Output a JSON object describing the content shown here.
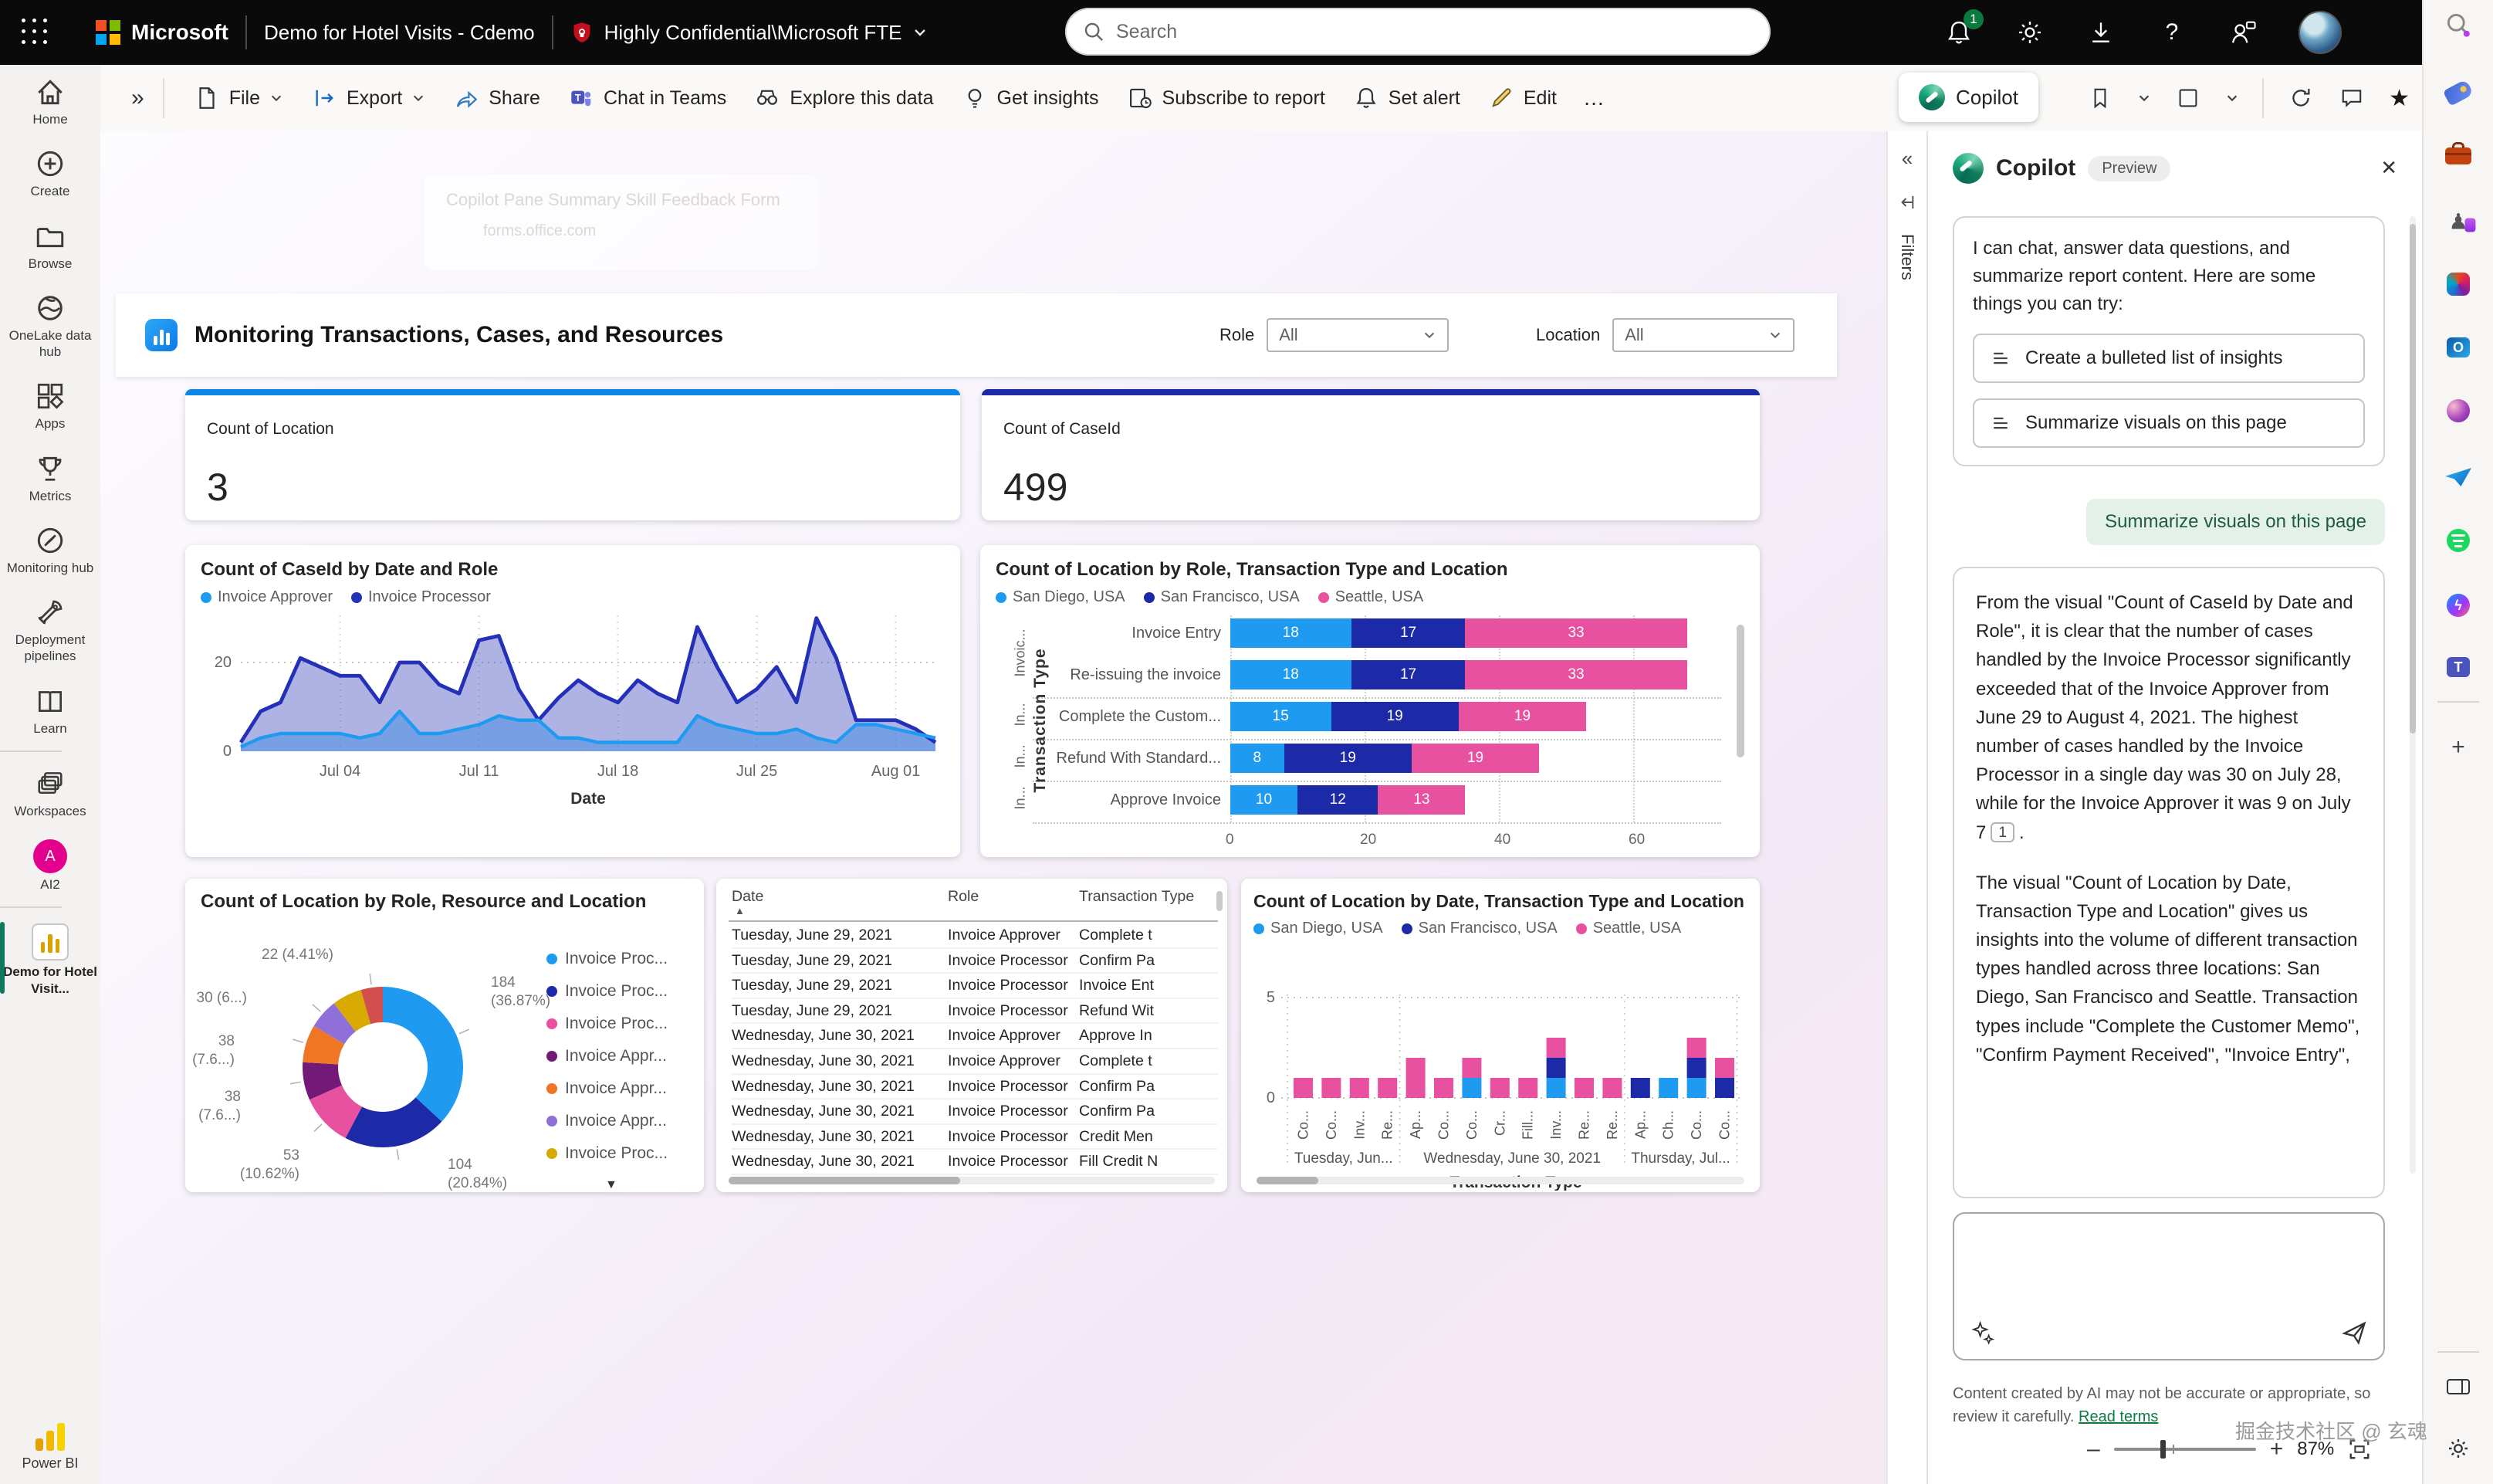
{
  "topbar": {
    "app_title": "Demo for Hotel Visits - Cdemo",
    "sensitivity": "Highly Confidential\\Microsoft FTE",
    "search_placeholder": "Search",
    "notification_count": "1"
  },
  "toolbar": {
    "collapse": "»",
    "items": [
      {
        "label": "File",
        "icon": "file-icon",
        "chevron": true
      },
      {
        "label": "Export",
        "icon": "export-icon",
        "chevron": true
      },
      {
        "label": "Share",
        "icon": "share-icon"
      },
      {
        "label": "Chat in Teams",
        "icon": "teams-icon"
      },
      {
        "label": "Explore this data",
        "icon": "explore-icon"
      },
      {
        "label": "Get insights",
        "icon": "insights-icon"
      },
      {
        "label": "Subscribe to report",
        "icon": "subscribe-icon"
      },
      {
        "label": "Set alert",
        "icon": "alert-icon"
      },
      {
        "label": "Edit",
        "icon": "edit-icon"
      }
    ],
    "more": "…",
    "copilot_label": "Copilot"
  },
  "sidebar": {
    "items": [
      {
        "label": "Home",
        "icon": "home"
      },
      {
        "label": "Create",
        "icon": "create"
      },
      {
        "label": "Browse",
        "icon": "browse"
      },
      {
        "label": "OneLake data hub",
        "icon": "onelake"
      },
      {
        "label": "Apps",
        "icon": "apps"
      },
      {
        "label": "Metrics",
        "icon": "metrics"
      },
      {
        "label": "Monitoring hub",
        "icon": "monitoring"
      },
      {
        "label": "Deployment pipelines",
        "icon": "deployment"
      },
      {
        "label": "Learn",
        "icon": "learn"
      },
      {
        "divider": true
      },
      {
        "label": "Workspaces",
        "icon": "workspaces"
      },
      {
        "label": "AI2",
        "icon": "ai2",
        "avatar": "A"
      },
      {
        "divider": true
      },
      {
        "label": "Demo for Hotel Visit...",
        "icon": "report",
        "active": true
      }
    ],
    "footer": "Power BI"
  },
  "report": {
    "title": "Monitoring Transactions, Cases, and Resources",
    "role_label": "Role",
    "role_value": "All",
    "location_label": "Location",
    "location_value": "All",
    "kpis": [
      {
        "label": "Count of Location",
        "value": "3",
        "accent": "#0d86e8"
      },
      {
        "label": "Count of CaseId",
        "value": "499",
        "accent": "#1c2aa8"
      }
    ],
    "ghost_popup": {
      "line1": "Copilot Pane Summary Skill Feedback Form",
      "line2": "forms.office.com"
    }
  },
  "filters_pane": {
    "label": "Filters",
    "collapse": "«"
  },
  "copilot": {
    "title": "Copilot",
    "badge": "Preview",
    "intro": "I can chat, answer data questions, and summarize report content. Here are some things you can try:",
    "suggestions": [
      "Create a bulleted list of insights",
      "Summarize visuals on this page"
    ],
    "user_message": "Summarize visuals on this page",
    "response_p1": "From the visual \"Count of CaseId by Date and Role\", it is clear that the number of cases handled by the Invoice Processor significantly exceeded that of the Invoice Approver from June 29 to August 4, 2021. The highest number of cases handled by the Invoice Processor in a single day was 30 on July 28, while for the Invoice Approver it was 9 on July 7",
    "citation": "1",
    "response_p2": "The visual \"Count of Location by Date, Transaction Type and Location\" gives us insights into the volume of different transaction types handled across three locations: San Diego, San Francisco and Seattle. Transaction types include \"Complete the Customer Memo\", \"Confirm Payment Received\", \"Invoice Entry\",",
    "disclaimer": "Content created by AI may not be accurate or appropriate, so review it carefully.",
    "read_terms": "Read terms"
  },
  "statusbar": {
    "zoom": "87%",
    "watermark": "掘金技术社区 @ 玄魂"
  },
  "edge_sidebar": [
    "search-icon",
    "shopping-icon",
    "toolbox-icon",
    "games-icon",
    "microsoft365-icon",
    "outlook-icon",
    "designer-icon",
    "send-icon",
    "spotify-icon",
    "messenger-icon",
    "teams-icon",
    "divider",
    "add-icon",
    "divider-bottom",
    "sidebar-panel-icon",
    "settings-icon"
  ],
  "chart_data": [
    {
      "type": "area",
      "title": "Count of CaseId by Date and Role",
      "xlabel": "Date",
      "x_ticks": [
        "Jul 04",
        "Jul 11",
        "Jul 18",
        "Jul 25",
        "Aug 01"
      ],
      "x_tick_day_index": [
        5,
        12,
        19,
        26,
        33
      ],
      "ylim": [
        0,
        32
      ],
      "y_ticks": [
        0,
        20
      ],
      "legend_position": "top",
      "series": [
        {
          "name": "Invoice Approver",
          "color": "#1e9bf0",
          "values": [
            1,
            3,
            4,
            4,
            4,
            4,
            3,
            4,
            9,
            4,
            4,
            5,
            6,
            8,
            7,
            7,
            3,
            3,
            2,
            2,
            2,
            2,
            2,
            8,
            6,
            5,
            4,
            4,
            5,
            3,
            2,
            6,
            6,
            5,
            4,
            3
          ]
        },
        {
          "name": "Invoice Processor",
          "color": "#2430b8",
          "values": [
            2,
            9,
            11,
            21,
            19,
            17,
            17,
            11,
            20,
            20,
            15,
            13,
            25,
            26,
            14,
            7,
            12,
            16,
            13,
            11,
            16,
            13,
            11,
            28,
            19,
            11,
            14,
            19,
            11,
            30,
            21,
            7,
            7,
            7,
            5,
            2
          ]
        }
      ]
    },
    {
      "type": "bar",
      "title": "Count of Location by Role, Transaction Type and Location",
      "ylabel": "Transaction Type",
      "categories": [
        "Invoice Entry",
        "Re-issuing the invoice",
        "Complete the Custom...",
        "Refund With Standard...",
        "Approve Invoice"
      ],
      "role_group_labels": [
        "Invoic...",
        "In...",
        "In...",
        "In..."
      ],
      "x_ticks": [
        0,
        20,
        40,
        60
      ],
      "series": [
        {
          "name": "San Diego, USA",
          "color": "#1e9bf0",
          "values": [
            18,
            18,
            15,
            8,
            10
          ]
        },
        {
          "name": "San Francisco, USA",
          "color": "#1c2aa8",
          "values": [
            17,
            17,
            19,
            19,
            12
          ]
        },
        {
          "name": "Seattle, USA",
          "color": "#e7519f",
          "values": [
            33,
            33,
            19,
            19,
            13
          ]
        }
      ]
    },
    {
      "type": "pie",
      "title": "Count of Location by Role, Resource and Location",
      "total": 499,
      "slices": [
        {
          "value": 184,
          "label1": "184",
          "label2": "(36.87%)",
          "color": "#1e9bf0",
          "legend": "Invoice Proc..."
        },
        {
          "value": 104,
          "label1": "104",
          "label2": "(20.84%)",
          "color": "#1c2aa8",
          "legend": "Invoice Proc..."
        },
        {
          "value": 53,
          "label1": "53",
          "label2": "(10.62%)",
          "color": "#e7519f",
          "legend": "Invoice Proc..."
        },
        {
          "value": 38,
          "label1": "38",
          "label2": "(7.6...)",
          "color": "#731a78",
          "legend": "Invoice Appr..."
        },
        {
          "value": 38,
          "label1": "38",
          "label2": "(7.6...)",
          "color": "#ee7624",
          "legend": "Invoice Appr..."
        },
        {
          "value": 30,
          "label1": "30 (6...)",
          "label2": "",
          "color": "#8f6fd8",
          "legend": "Invoice Appr..."
        },
        {
          "value": 30,
          "label1": "",
          "label2": "",
          "color": "#d8a900",
          "legend": "Invoice Proc..."
        },
        {
          "value": 22,
          "label1": "22 (4.41%)",
          "label2": "",
          "color": "#d14f4d",
          "legend": ""
        }
      ],
      "legend_more": "▼"
    },
    {
      "type": "table",
      "columns": [
        "Date",
        "Role",
        "Transaction Type"
      ],
      "rows": [
        [
          "Tuesday, June 29, 2021",
          "Invoice Approver",
          "Complete t"
        ],
        [
          "Tuesday, June 29, 2021",
          "Invoice Processor",
          "Confirm Pa"
        ],
        [
          "Tuesday, June 29, 2021",
          "Invoice Processor",
          "Invoice Ent"
        ],
        [
          "Tuesday, June 29, 2021",
          "Invoice Processor",
          "Refund Wit"
        ],
        [
          "Wednesday, June 30, 2021",
          "Invoice Approver",
          "Approve In"
        ],
        [
          "Wednesday, June 30, 2021",
          "Invoice Approver",
          "Complete t"
        ],
        [
          "Wednesday, June 30, 2021",
          "Invoice Processor",
          "Confirm Pa"
        ],
        [
          "Wednesday, June 30, 2021",
          "Invoice Processor",
          "Confirm Pa"
        ],
        [
          "Wednesday, June 30, 2021",
          "Invoice Processor",
          "Credit Men"
        ],
        [
          "Wednesday, June 30, 2021",
          "Invoice Processor",
          "Fill Credit N"
        ]
      ]
    },
    {
      "type": "bar",
      "subtype": "stacked-column",
      "title": "Count of Location by Date, Transaction Type and Location",
      "xlabel": "Transaction Type",
      "y_ticks": [
        0,
        5
      ],
      "bar_labels": [
        "Co...",
        "Co...",
        "Inv...",
        "Re...",
        "Ap...",
        "Co...",
        "Co...",
        "Cr...",
        "Fill...",
        "Inv...",
        "Re...",
        "Re...",
        "Ap...",
        "Ch...",
        "Co...",
        "Co..."
      ],
      "groups": [
        {
          "label": "Tuesday, Jun...",
          "count": 4
        },
        {
          "label": "Wednesday, June 30, 2021",
          "count": 8
        },
        {
          "label": "Thursday, Jul...",
          "count": 4
        }
      ],
      "series": [
        {
          "name": "San Diego, USA",
          "color": "#1e9bf0",
          "values": [
            0,
            0,
            0,
            0,
            0,
            0,
            1,
            0,
            0,
            1,
            0,
            0,
            0,
            1,
            1,
            0
          ]
        },
        {
          "name": "San Francisco, USA",
          "color": "#1c2aa8",
          "values": [
            0,
            0,
            0,
            0,
            0,
            0,
            0,
            0,
            0,
            1,
            0,
            0,
            1,
            0,
            1,
            1
          ]
        },
        {
          "name": "Seattle, USA",
          "color": "#e7519f",
          "values": [
            1,
            1,
            1,
            1,
            2,
            1,
            1,
            1,
            1,
            1,
            1,
            1,
            0,
            0,
            1,
            1
          ]
        }
      ]
    }
  ]
}
